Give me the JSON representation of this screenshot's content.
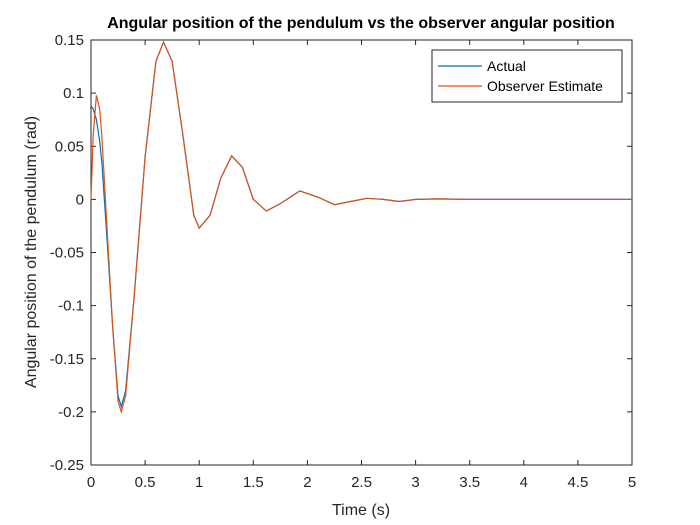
{
  "chart_data": {
    "type": "line",
    "title": "Angular position of the pendulum vs the observer angular position",
    "x_label": "Time (s)",
    "y_label": "Angular position of the pendulum (rad)",
    "x": [
      0,
      0.02,
      0.05,
      0.08,
      0.1,
      0.15,
      0.2,
      0.25,
      0.28,
      0.32,
      0.4,
      0.5,
      0.6,
      0.67,
      0.75,
      0.85,
      0.95,
      1.0,
      1.1,
      1.2,
      1.3,
      1.4,
      1.5,
      1.62,
      1.75,
      1.93,
      2.1,
      2.25,
      2.4,
      2.55,
      2.7,
      2.85,
      3.0,
      3.2,
      3.5,
      4.0,
      4.5,
      5.0
    ],
    "series": [
      {
        "name": "Actual",
        "color": "#0072bd",
        "values": [
          0.088,
          0.085,
          0.075,
          0.055,
          0.035,
          -0.04,
          -0.12,
          -0.185,
          -0.195,
          -0.18,
          -0.09,
          0.04,
          0.13,
          0.148,
          0.13,
          0.06,
          -0.015,
          -0.027,
          -0.015,
          0.02,
          0.041,
          0.03,
          0.0,
          -0.011,
          -0.004,
          0.008,
          0.002,
          -0.005,
          -0.002,
          0.001,
          0,
          -0.002,
          0,
          0.0005,
          0,
          0,
          0,
          0
        ]
      },
      {
        "name": "Observer Estimate",
        "color": "#d95319",
        "values": [
          0,
          0.06,
          0.098,
          0.085,
          0.06,
          -0.03,
          -0.12,
          -0.19,
          -0.2,
          -0.185,
          -0.09,
          0.04,
          0.13,
          0.148,
          0.13,
          0.06,
          -0.015,
          -0.027,
          -0.015,
          0.02,
          0.041,
          0.03,
          0.0,
          -0.011,
          -0.004,
          0.008,
          0.002,
          -0.005,
          -0.002,
          0.001,
          0,
          -0.002,
          0,
          0.0005,
          0,
          0,
          0,
          0
        ]
      }
    ],
    "xlim": [
      0,
      5
    ],
    "xticks": [
      0,
      0.5,
      1,
      1.5,
      2,
      2.5,
      3,
      3.5,
      4,
      4.5,
      5
    ],
    "ylim": [
      -0.25,
      0.15
    ],
    "yticks": [
      -0.25,
      -0.2,
      -0.15,
      -0.1,
      -0.05,
      0,
      0.05,
      0.1,
      0.15
    ],
    "grid": false,
    "legend": "northeast"
  }
}
